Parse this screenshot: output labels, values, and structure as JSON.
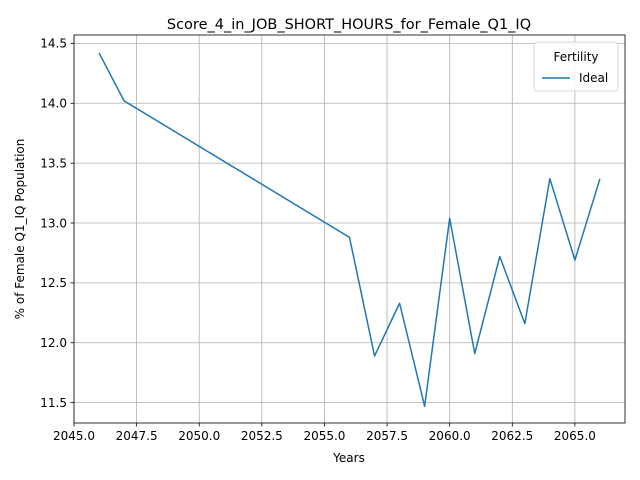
{
  "chart_data": {
    "type": "line",
    "title": "Score_4_in_JOB_SHORT_HOURS_for_Female_Q1_IQ",
    "xlabel": "Years",
    "ylabel": "% of Female Q1_IQ Population",
    "xlim": [
      2045.0,
      2067.0
    ],
    "ylim": [
      11.33,
      14.57
    ],
    "xticks": [
      2045.0,
      2047.5,
      2050.0,
      2052.5,
      2055.0,
      2057.5,
      2060.0,
      2062.5,
      2065.0
    ],
    "xtick_labels": [
      "2045.0",
      "2047.5",
      "2050.0",
      "2052.5",
      "2055.0",
      "2057.5",
      "2060.0",
      "2062.5",
      "2065.0"
    ],
    "yticks": [
      11.5,
      12.0,
      12.5,
      13.0,
      13.5,
      14.0,
      14.5
    ],
    "ytick_labels": [
      "11.5",
      "12.0",
      "12.5",
      "13.0",
      "13.5",
      "14.0",
      "14.5"
    ],
    "grid": true,
    "legend": {
      "title": "Fertility",
      "position": "top-right"
    },
    "series": [
      {
        "name": "Ideal",
        "color": "#1f77b4",
        "x": [
          2046,
          2047,
          2056,
          2057,
          2058,
          2059,
          2060,
          2061,
          2062,
          2063,
          2064,
          2065,
          2066
        ],
        "y": [
          14.42,
          14.02,
          12.88,
          11.89,
          12.33,
          11.47,
          13.04,
          11.91,
          12.72,
          12.16,
          13.37,
          12.69,
          13.37
        ]
      }
    ]
  }
}
